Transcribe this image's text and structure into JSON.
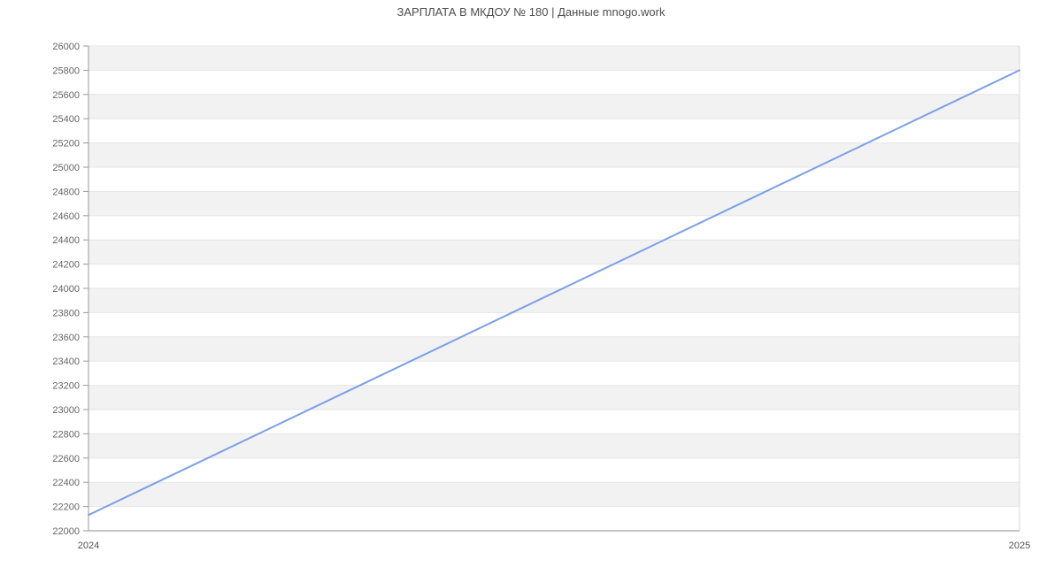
{
  "title": "ЗАРПЛАТА В МКДОУ № 180 | Данные mnogo.work",
  "chart_data": {
    "type": "line",
    "title": "ЗАРПЛАТА В МКДОУ № 180 | Данные mnogo.work",
    "x": [
      "2024",
      "2025"
    ],
    "values": [
      22130,
      25800
    ],
    "xlabel": "",
    "ylabel": "",
    "ylim": [
      22000,
      26000
    ],
    "ytick_step": 200,
    "xtick_labels": [
      "2024",
      "2025"
    ],
    "grid": true,
    "alternating_bands": true,
    "band_pattern": "gray band from 25800-26000, then alternating white/gray every 200 down to 22000",
    "legend_position": "none",
    "colors": {
      "line": "#7aa0e8",
      "band": "#f2f2f2",
      "gridline": "#e6e6e6",
      "plot_border": "#d9d9d9",
      "axis_line": "#999999",
      "bottom_axis_line": "#8c8c8c",
      "tick_text": "#666666",
      "xtick_text": "#555555",
      "title_text": "#4d4d4d",
      "background": "#ffffff"
    }
  }
}
